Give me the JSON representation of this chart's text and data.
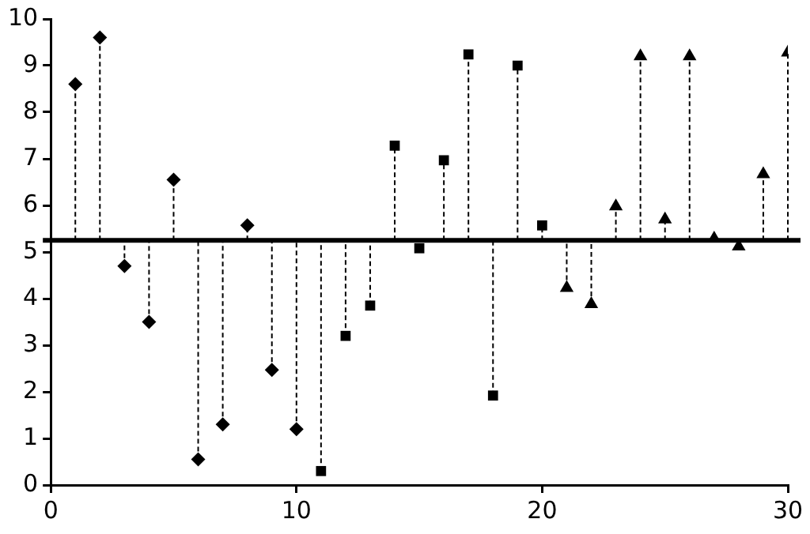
{
  "chart_data": {
    "type": "lollipop",
    "xlim": [
      0,
      30
    ],
    "xticks": [
      0,
      10,
      20,
      30
    ],
    "ylim": [
      0,
      10
    ],
    "yticks": [
      0,
      1,
      2,
      3,
      4,
      5,
      6,
      7,
      8,
      9,
      10
    ],
    "grid": false,
    "legend": false,
    "line_style": "dashed",
    "ref_lines": [
      {
        "axis": "y",
        "value": 5.25,
        "color": "#000000"
      }
    ],
    "series": [
      {
        "color": "#000000",
        "marker": "diamond",
        "x": [
          1,
          2,
          3,
          4,
          5,
          6,
          7,
          8,
          9,
          10
        ],
        "values": [
          8.6,
          9.6,
          4.7,
          3.5,
          6.55,
          0.55,
          1.3,
          5.57,
          2.47,
          1.2
        ],
        "errors": [
          [
            5.25,
            8.6
          ],
          [
            5.25,
            9.6
          ],
          [
            4.7,
            5.25
          ],
          [
            3.5,
            5.25
          ],
          [
            5.25,
            6.55
          ],
          [
            0.55,
            5.25
          ],
          [
            1.3,
            5.25
          ],
          [
            5.25,
            5.57
          ],
          [
            2.47,
            5.25
          ],
          [
            1.2,
            5.25
          ]
        ]
      },
      {
        "color": "#000000",
        "marker": "square",
        "x": [
          11,
          12,
          13,
          14,
          15,
          16,
          17,
          18,
          19,
          20
        ],
        "values": [
          0.3,
          3.2,
          3.85,
          7.28,
          5.08,
          6.97,
          9.24,
          1.92,
          9.0,
          5.57
        ],
        "errors": [
          [
            0.3,
            5.25
          ],
          [
            3.2,
            5.25
          ],
          [
            3.85,
            5.25
          ],
          [
            5.25,
            7.28
          ],
          [
            5.08,
            5.25
          ],
          [
            5.25,
            6.97
          ],
          [
            5.25,
            9.24
          ],
          [
            1.92,
            5.25
          ],
          [
            5.25,
            9.0
          ],
          [
            5.25,
            5.57
          ]
        ]
      },
      {
        "color": "#000000",
        "marker": "triangle",
        "x": [
          21,
          22,
          23,
          24,
          25,
          26,
          27,
          28,
          29,
          30
        ],
        "values": [
          4.23,
          3.88,
          5.98,
          9.2,
          5.7,
          9.2,
          5.29,
          5.12,
          6.67,
          9.28
        ],
        "errors": [
          [
            4.23,
            5.25
          ],
          [
            3.88,
            5.25
          ],
          [
            5.25,
            5.98
          ],
          [
            5.25,
            9.2
          ],
          [
            5.25,
            5.7
          ],
          [
            5.25,
            9.2
          ],
          [
            5.25,
            5.29
          ],
          [
            5.12,
            5.25
          ],
          [
            5.25,
            6.67
          ],
          [
            5.25,
            9.28
          ]
        ]
      }
    ]
  }
}
